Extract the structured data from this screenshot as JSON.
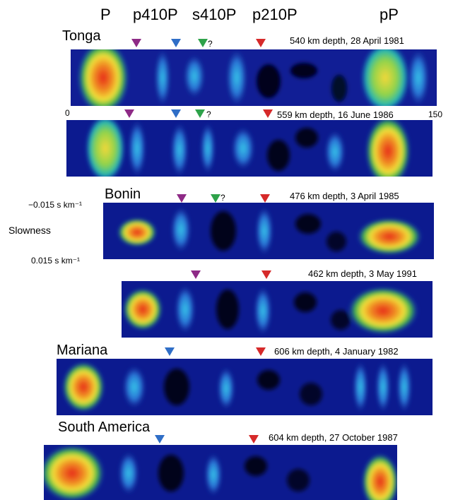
{
  "phases": {
    "p": "P",
    "p410p": "p410P",
    "s410p": "s410P",
    "p210p": "p210P",
    "pp": "pP"
  },
  "regions": {
    "tonga": "Tonga",
    "bonin": "Bonin",
    "mariana": "Mariana",
    "south_america": "South America"
  },
  "events": {
    "tonga_1": "540 km depth, 28 April 1981",
    "tonga_2": "559 km depth, 16 June 1986",
    "bonin_1": "476 km depth, 3 April 1985",
    "bonin_2": "462 km depth, 3 May 1991",
    "mariana_1": "606 km depth, 4 January 1982",
    "south_america_1": "604 km depth, 27 October 1987"
  },
  "axis": {
    "time_start": "0",
    "time_end": "150",
    "slowness_label": "Slowness",
    "slowness_top": "−0.015 s km⁻¹",
    "slowness_bottom": "0.015 s km⁻¹"
  },
  "uncertain_mark": "?",
  "colors": {
    "marker_purple": "#8e2a86",
    "marker_blue": "#2f6ec7",
    "marker_green": "#2ea24a",
    "marker_red": "#d62a2a",
    "panel_base": "#0c1a8f"
  }
}
